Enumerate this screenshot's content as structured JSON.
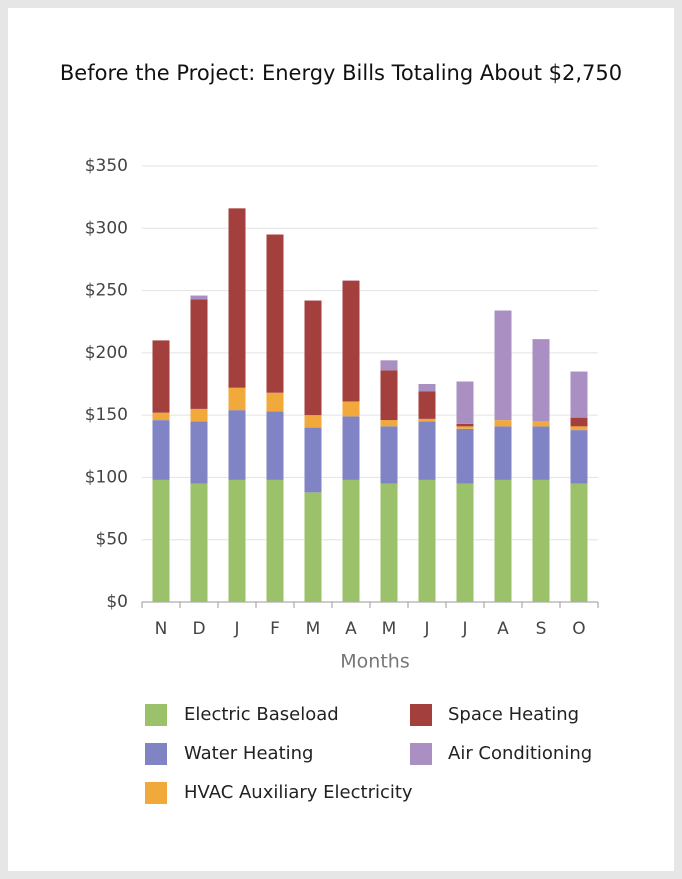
{
  "chart_data": {
    "type": "stacked-bar",
    "title": "Before the Project: Energy Bills Totaling About $2,750",
    "x_label": "Months",
    "categories": [
      "N",
      "D",
      "J",
      "F",
      "M",
      "A",
      "M",
      "J",
      "J",
      "A",
      "S",
      "O"
    ],
    "series": [
      {
        "name": "Electric Baseload",
        "color": "#9bc26a",
        "values": [
          98,
          95,
          98,
          98,
          88,
          98,
          95,
          98,
          95,
          98,
          98,
          95
        ]
      },
      {
        "name": "Water Heating",
        "color": "#8083c4",
        "values": [
          48,
          50,
          56,
          55,
          52,
          51,
          46,
          47,
          44,
          43,
          43,
          43
        ]
      },
      {
        "name": "HVAC Auxiliary Electricity",
        "color": "#f0a93a",
        "values": [
          6,
          10,
          18,
          15,
          10,
          12,
          5,
          2,
          2,
          5,
          4,
          3
        ]
      },
      {
        "name": "Space Heating",
        "color": "#a33f3c",
        "values": [
          58,
          88,
          144,
          127,
          92,
          97,
          40,
          22,
          2,
          0,
          0,
          7
        ]
      },
      {
        "name": "Air Conditioning",
        "color": "#a98fc2",
        "values": [
          0,
          3,
          0,
          0,
          0,
          0,
          8,
          6,
          34,
          88,
          66,
          37
        ]
      }
    ],
    "ylim": [
      0,
      350
    ],
    "yticks": [
      {
        "value": 0,
        "label": "$0"
      },
      {
        "value": 50,
        "label": "$50"
      },
      {
        "value": 100,
        "label": "$100"
      },
      {
        "value": 150,
        "label": "$150"
      },
      {
        "value": 200,
        "label": "$200"
      },
      {
        "value": 250,
        "label": "$250"
      },
      {
        "value": 300,
        "label": "$300"
      },
      {
        "value": 350,
        "label": "$350"
      }
    ],
    "grid": true
  }
}
